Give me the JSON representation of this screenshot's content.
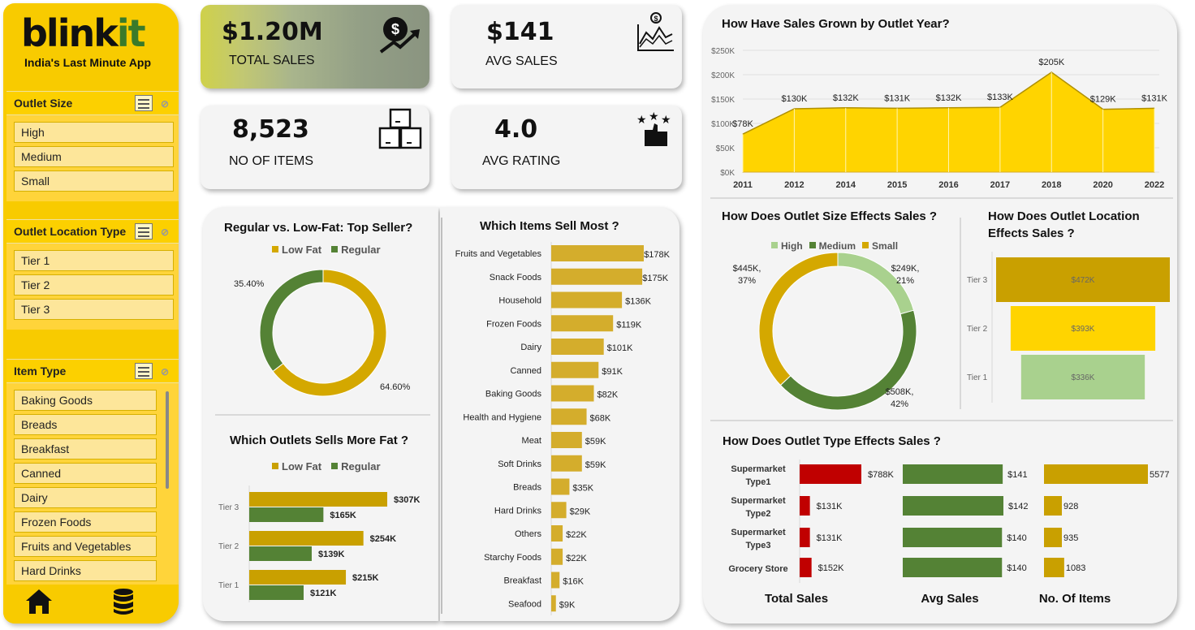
{
  "brand": {
    "name_main": "blink",
    "name_accent": "it",
    "tagline": "India's Last Minute App"
  },
  "colors": {
    "gold": "#c9a000",
    "yellow": "#ffd400",
    "mustard": "#d4a800",
    "green": "#548235",
    "light_green": "#a9d18e",
    "red": "#c00000"
  },
  "slicers": [
    {
      "title": "Outlet Size",
      "items": [
        "High",
        "Medium",
        "Small"
      ]
    },
    {
      "title": "Outlet Location Type",
      "items": [
        "Tier 1",
        "Tier 2",
        "Tier 3"
      ]
    },
    {
      "title": "Item Type",
      "items": [
        "Baking Goods",
        "Breads",
        "Breakfast",
        "Canned",
        "Dairy",
        "Frozen Foods",
        "Fruits and Vegetables",
        "Hard Drinks"
      ]
    }
  ],
  "nav": {
    "home_icon": "home-icon",
    "data_icon": "database-icon"
  },
  "kpis": {
    "total_sales": {
      "value": "$1.20M",
      "label": "TOTAL SALES",
      "icon": "dollar-growth-icon"
    },
    "avg_sales": {
      "value": "$141",
      "label": "AVG SALES",
      "icon": "chart-dollar-icon"
    },
    "items": {
      "value": "8,523",
      "label": "NO OF ITEMS",
      "icon": "boxes-icon"
    },
    "rating": {
      "value": "4.0",
      "label": "AVG RATING",
      "icon": "rating-thumb-icon"
    }
  },
  "fat_panel": {
    "title": "Regular vs. Low-Fat: Top Seller?",
    "legend": [
      "Low Fat",
      "Regular"
    ]
  },
  "outlet_fat_panel": {
    "title": "Which Outlets Sells More Fat  ?",
    "legend": [
      "Low Fat",
      "Regular"
    ]
  },
  "items_panel": {
    "title": "Which Items Sell Most ?"
  },
  "year_panel": {
    "title": "How Have Sales Grown by Outlet Year?"
  },
  "size_panel": {
    "title": "How Does Outlet Size Effects Sales ?",
    "legend": [
      "High",
      "Medium",
      "Small"
    ]
  },
  "location_panel": {
    "title_line1": "How Does Outlet Location",
    "title_line2": "Effects Sales ?"
  },
  "type_panel": {
    "title": "How Does Outlet Type Effects Sales ?",
    "col_titles": [
      "Total Sales",
      "Avg Sales",
      "No. Of Items"
    ]
  },
  "chart_data": [
    {
      "id": "fat",
      "type": "pie",
      "title": "Regular vs. Low-Fat: Top Seller?",
      "categories": [
        "Low Fat",
        "Regular"
      ],
      "values": [
        64.6,
        35.4
      ],
      "labels": [
        "64.60%",
        "35.40%"
      ],
      "colors": [
        "#d4a800",
        "#548235"
      ]
    },
    {
      "id": "outlet_fat",
      "type": "bar",
      "title": "Which Outlets Sells More Fat  ?",
      "categories": [
        "Tier 3",
        "Tier 2",
        "Tier 1"
      ],
      "series": [
        {
          "name": "Low Fat",
          "values": [
            307,
            254,
            215
          ],
          "labels": [
            "$307K",
            "$254K",
            "$215K"
          ],
          "color": "#c9a000"
        },
        {
          "name": "Regular",
          "values": [
            165,
            139,
            121
          ],
          "labels": [
            "$165K",
            "$139K",
            "$121K"
          ],
          "color": "#548235"
        }
      ],
      "xlim": [
        0,
        320
      ]
    },
    {
      "id": "items",
      "type": "bar",
      "title": "Which Items Sell Most ?",
      "categories": [
        "Fruits and Vegetables",
        "Snack Foods",
        "Household",
        "Frozen Foods",
        "Dairy",
        "Canned",
        "Baking Goods",
        "Health and Hygiene",
        "Meat",
        "Soft Drinks",
        "Breads",
        "Hard Drinks",
        "Others",
        "Starchy Foods",
        "Breakfast",
        "Seafood"
      ],
      "values": [
        178,
        175,
        136,
        119,
        101,
        91,
        82,
        68,
        59,
        59,
        35,
        29,
        22,
        22,
        16,
        9
      ],
      "labels": [
        "$178K",
        "$175K",
        "$136K",
        "$119K",
        "$101K",
        "$91K",
        "$82K",
        "$68K",
        "$59K",
        "$59K",
        "$35K",
        "$29K",
        "$22K",
        "$22K",
        "$16K",
        "$9K"
      ],
      "xlim": [
        0,
        180
      ]
    },
    {
      "id": "year",
      "type": "area",
      "title": "How Have Sales Grown by Outlet Year?",
      "x": [
        "2011",
        "2012",
        "2014",
        "2015",
        "2016",
        "2017",
        "2018",
        "2020",
        "2022"
      ],
      "values": [
        78,
        130,
        132,
        131,
        132,
        133,
        205,
        129,
        131
      ],
      "labels": [
        "$78K",
        "$130K",
        "$132K",
        "$131K",
        "$132K",
        "$133K",
        "$205K",
        "$129K",
        "$131K"
      ],
      "ylim": [
        0,
        250
      ],
      "yticks": [
        "$0K",
        "$50K",
        "$100K",
        "$150K",
        "$200K",
        "$250K"
      ]
    },
    {
      "id": "size",
      "type": "pie",
      "title": "How Does Outlet Size Effects Sales ?",
      "categories": [
        "High",
        "Medium",
        "Small"
      ],
      "values": [
        249,
        508,
        445
      ],
      "labels": [
        [
          "$249K,",
          "21%"
        ],
        [
          "$508K,",
          "42%"
        ],
        [
          "$445K,",
          "37%"
        ]
      ],
      "colors": [
        "#a9d18e",
        "#548235",
        "#d4a800"
      ]
    },
    {
      "id": "location",
      "type": "bar",
      "title": "How Does Outlet Location Effects Sales ?",
      "categories": [
        "Tier 3",
        "Tier 2",
        "Tier 1"
      ],
      "values": [
        472,
        393,
        336
      ],
      "labels": [
        "$472K",
        "$393K",
        "$336K"
      ],
      "colors": [
        "#c9a000",
        "#ffd400",
        "#a9d18e"
      ]
    },
    {
      "id": "type",
      "type": "table",
      "title": "How Does Outlet Type Effects Sales ?",
      "categories": [
        [
          "Supermarket",
          "Type1"
        ],
        [
          "Supermarket",
          "Type2"
        ],
        [
          "Supermarket",
          "Type3"
        ],
        [
          "Grocery Store"
        ]
      ],
      "series": [
        {
          "name": "Total Sales",
          "values": [
            788,
            131,
            131,
            152
          ],
          "labels": [
            "$788K",
            "$131K",
            "$131K",
            "$152K"
          ],
          "color": "#c00000"
        },
        {
          "name": "Avg Sales",
          "values": [
            141,
            142,
            140,
            140
          ],
          "labels": [
            "$141",
            "$142",
            "$140",
            "$140"
          ],
          "color": "#548235"
        },
        {
          "name": "No. Of Items",
          "values": [
            5577,
            928,
            935,
            1083
          ],
          "labels": [
            "5577",
            "928",
            "935",
            "1083"
          ],
          "color": "#c9a000"
        }
      ]
    }
  ]
}
